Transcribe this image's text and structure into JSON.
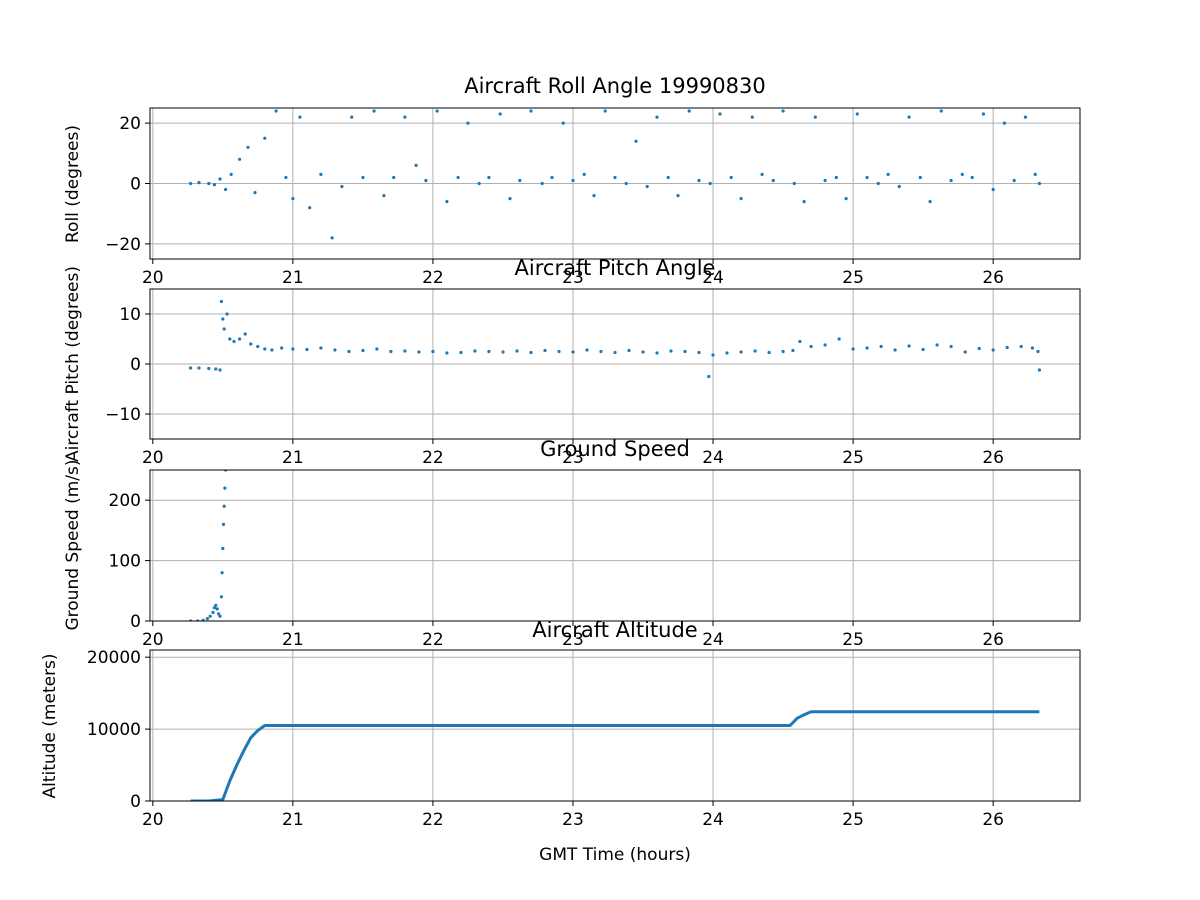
{
  "colors": {
    "series": "#1f77b4",
    "grid": "#b0b0b0",
    "axes": "#000000",
    "background": "#ffffff"
  },
  "chart_data": [
    {
      "type": "scatter",
      "title": "Aircraft Roll Angle 19990830",
      "xlabel": "",
      "ylabel": "Roll (degrees)",
      "xlim": [
        19.98,
        26.62
      ],
      "ylim": [
        -25,
        25
      ],
      "xticks": [
        20,
        21,
        22,
        23,
        24,
        25,
        26
      ],
      "yticks": [
        -20,
        0,
        20
      ],
      "grid": true,
      "marker": "dots",
      "series": [
        {
          "x": [
            20.27,
            20.33,
            20.4,
            20.44,
            20.48,
            20.52,
            20.56,
            20.62,
            20.68,
            20.73,
            20.8,
            20.88,
            20.95,
            21.0,
            21.05,
            21.12,
            21.2,
            21.28,
            21.35,
            21.42,
            21.5,
            21.58,
            21.65,
            21.72,
            21.8,
            21.88,
            21.95,
            22.03,
            22.1,
            22.18,
            22.25,
            22.33,
            22.4,
            22.48,
            22.55,
            22.62,
            22.7,
            22.78,
            22.85,
            22.93,
            23.0,
            23.08,
            23.15,
            23.23,
            23.3,
            23.38,
            23.45,
            23.53,
            23.6,
            23.68,
            23.75,
            23.83,
            23.9,
            23.98,
            24.05,
            24.13,
            24.2,
            24.28,
            24.35,
            24.43,
            24.5,
            24.58,
            24.65,
            24.73,
            24.8,
            24.88,
            24.95,
            25.03,
            25.1,
            25.18,
            25.25,
            25.33,
            25.4,
            25.48,
            25.55,
            25.63,
            25.7,
            25.78,
            25.85,
            25.93,
            26.0,
            26.08,
            26.15,
            26.23,
            26.3,
            26.33
          ],
          "y": [
            0,
            0.3,
            0,
            -0.4,
            1.5,
            -2,
            3,
            8,
            12,
            -3,
            15,
            24,
            2,
            -5,
            22,
            -8,
            3,
            -18,
            -1,
            22,
            2,
            24,
            -4,
            2,
            22,
            6,
            1,
            24,
            -6,
            2,
            20,
            0,
            2,
            23,
            -5,
            1,
            24,
            0,
            2,
            20,
            1,
            3,
            -4,
            24,
            2,
            0,
            14,
            -1,
            22,
            2,
            -4,
            24,
            1,
            0,
            23,
            2,
            -5,
            22,
            3,
            1,
            24,
            0,
            -6,
            22,
            1,
            2,
            -5,
            23,
            2,
            0,
            3,
            -1,
            22,
            2,
            -6,
            24,
            1,
            3,
            2,
            23,
            -2,
            20,
            1,
            22,
            3,
            0
          ]
        }
      ]
    },
    {
      "type": "scatter",
      "title": "Aircraft Pitch Angle",
      "xlabel": "",
      "ylabel": "Aircraft Pitch (degrees)",
      "xlim": [
        19.98,
        26.62
      ],
      "ylim": [
        -15,
        15
      ],
      "xticks": [
        20,
        21,
        22,
        23,
        24,
        25,
        26
      ],
      "yticks": [
        -10,
        0,
        10
      ],
      "grid": true,
      "marker": "dots",
      "series": [
        {
          "x": [
            20.27,
            20.33,
            20.4,
            20.45,
            20.48,
            20.49,
            20.5,
            20.51,
            20.53,
            20.55,
            20.58,
            20.62,
            20.66,
            20.7,
            20.75,
            20.8,
            20.85,
            20.92,
            21.0,
            21.1,
            21.2,
            21.3,
            21.4,
            21.5,
            21.6,
            21.7,
            21.8,
            21.9,
            22.0,
            22.1,
            22.2,
            22.3,
            22.4,
            22.5,
            22.6,
            22.7,
            22.8,
            22.9,
            23.0,
            23.1,
            23.2,
            23.3,
            23.4,
            23.5,
            23.6,
            23.7,
            23.8,
            23.9,
            23.97,
            24.0,
            24.1,
            24.2,
            24.3,
            24.4,
            24.5,
            24.57,
            24.62,
            24.7,
            24.8,
            24.9,
            25.0,
            25.1,
            25.2,
            25.3,
            25.4,
            25.5,
            25.6,
            25.7,
            25.8,
            25.9,
            26.0,
            26.1,
            26.2,
            26.28,
            26.32,
            26.33
          ],
          "y": [
            -0.8,
            -0.8,
            -0.9,
            -1.0,
            -1.2,
            12.5,
            9,
            7,
            10,
            5,
            4.5,
            5,
            6,
            4,
            3.5,
            3,
            2.8,
            3.2,
            3,
            2.9,
            3.2,
            2.8,
            2.5,
            2.7,
            3,
            2.5,
            2.6,
            2.4,
            2.5,
            2.2,
            2.3,
            2.6,
            2.5,
            2.4,
            2.6,
            2.3,
            2.7,
            2.5,
            2.4,
            2.8,
            2.5,
            2.3,
            2.7,
            2.4,
            2.2,
            2.6,
            2.5,
            2.3,
            -2.5,
            1.8,
            2.2,
            2.4,
            2.6,
            2.3,
            2.5,
            2.7,
            4.5,
            3.5,
            3.8,
            5,
            3,
            3.2,
            3.5,
            2.8,
            3.6,
            2.9,
            3.8,
            3.5,
            2.4,
            3.1,
            2.8,
            3.3,
            3.5,
            3.2,
            2.5,
            -1.2
          ]
        }
      ]
    },
    {
      "type": "scatter",
      "title": "Ground Speed",
      "xlabel": "",
      "ylabel": "Ground Speed (m/s)",
      "xlim": [
        19.98,
        26.62
      ],
      "ylim": [
        0,
        250
      ],
      "xticks": [
        20,
        21,
        22,
        23,
        24,
        25,
        26
      ],
      "yticks": [
        0,
        100,
        200
      ],
      "grid": true,
      "marker": "dots",
      "series": [
        {
          "x": [
            20.27,
            20.32,
            20.36,
            20.39,
            20.41,
            20.43,
            20.44,
            20.45,
            20.46,
            20.47,
            20.48,
            20.49,
            20.495,
            20.5,
            20.505,
            20.51,
            20.515,
            20.52
          ],
          "y": [
            0,
            0,
            1,
            4,
            8,
            14,
            22,
            26,
            20,
            12,
            8,
            40,
            80,
            120,
            160,
            190,
            220,
            250
          ]
        }
      ]
    },
    {
      "type": "line",
      "title": "Aircraft Altitude",
      "xlabel": "GMT Time (hours)",
      "ylabel": "Altitude (meters)",
      "xlim": [
        19.98,
        26.62
      ],
      "ylim": [
        0,
        21000
      ],
      "xticks": [
        20,
        21,
        22,
        23,
        24,
        25,
        26
      ],
      "yticks": [
        0,
        10000,
        20000
      ],
      "grid": true,
      "series": [
        {
          "x": [
            20.27,
            20.4,
            20.5,
            20.55,
            20.6,
            20.65,
            20.7,
            20.75,
            20.8,
            21.0,
            21.5,
            22.0,
            22.5,
            23.0,
            23.5,
            24.0,
            24.4,
            24.55,
            24.6,
            24.65,
            24.7,
            24.8,
            25.0,
            25.5,
            26.0,
            26.33
          ],
          "y": [
            0,
            0,
            200,
            2800,
            5000,
            7000,
            8800,
            9800,
            10500,
            10500,
            10500,
            10500,
            10500,
            10500,
            10500,
            10500,
            10500,
            10500,
            11500,
            12000,
            12400,
            12400,
            12400,
            12400,
            12400,
            12400
          ]
        }
      ]
    }
  ]
}
